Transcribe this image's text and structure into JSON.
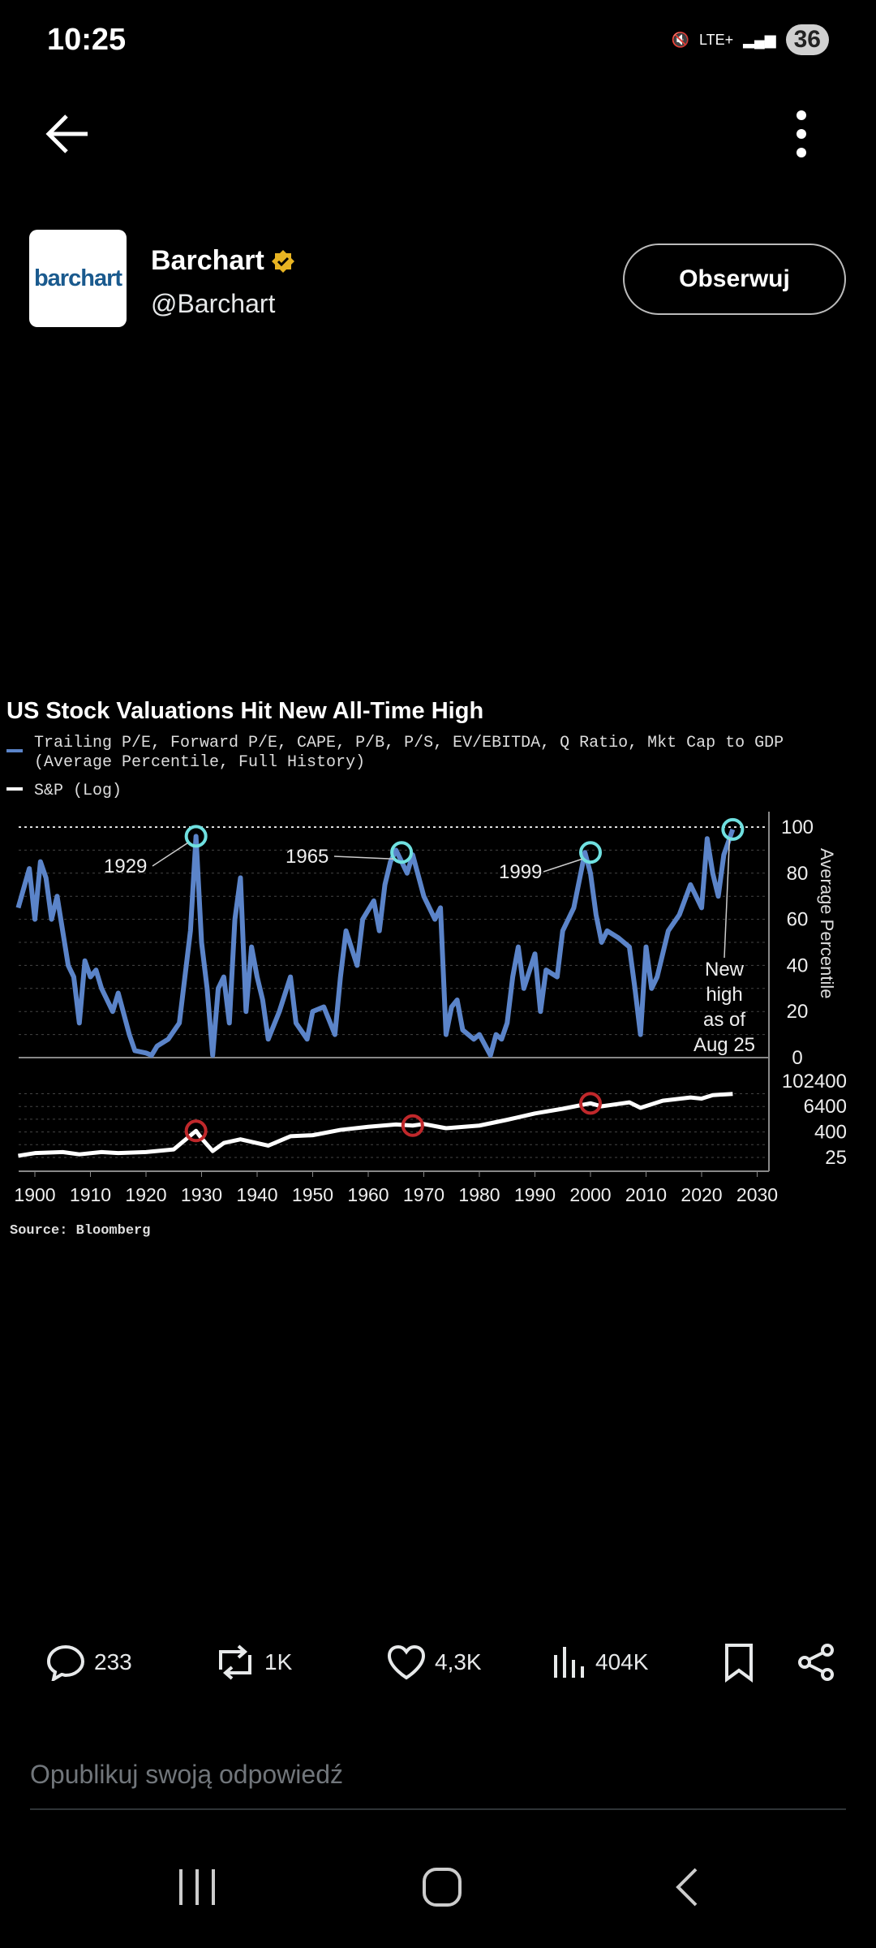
{
  "status_bar": {
    "time": "10:25",
    "network": "LTE+",
    "battery": "36"
  },
  "post": {
    "author_name": "Barchart",
    "handle": "@Barchart",
    "avatar_text": "barchart",
    "follow_label": "Obserwuj"
  },
  "actions": {
    "replies": "233",
    "reposts": "1K",
    "likes": "4,3K",
    "views": "404K"
  },
  "reply_placeholder": "Opublikuj swoją odpowiedź",
  "colors": {
    "valuation": "#5b84c9",
    "sp": "#ffffff",
    "peak_circle": "#6fe0e0",
    "sp_circle": "#c0282b",
    "verified": "#e8b422"
  },
  "chart_data": {
    "type": "line",
    "title": "US Stock Valuations Hit New All-Time High",
    "legend": [
      "Trailing P/E, Forward P/E, CAPE, P/B, P/S, EV/EBITDA, Q Ratio, Mkt Cap to GDP",
      "(Average Percentile, Full History)",
      "S&P (Log)"
    ],
    "source": "Source: Bloomberg",
    "xlabel": "",
    "xlim": [
      1896,
      2031
    ],
    "x_ticks": [
      "1900",
      "1910",
      "1920",
      "1930",
      "1940",
      "1950",
      "1960",
      "1970",
      "1980",
      "1990",
      "2000",
      "2010",
      "2020",
      "2030"
    ],
    "upper_panel": {
      "ylabel": "Average Percentile",
      "ylim": [
        0,
        100
      ],
      "y_ticks": [
        "0",
        "20",
        "40",
        "60",
        "80",
        "100"
      ],
      "series": {
        "name": "Average Percentile",
        "x": [
          1897,
          1899,
          1900,
          1901,
          1902,
          1903,
          1904,
          1906,
          1907,
          1908,
          1909,
          1910,
          1911,
          1912,
          1914,
          1915,
          1917,
          1918,
          1920,
          1921,
          1922,
          1924,
          1926,
          1928,
          1929,
          1930,
          1931,
          1932,
          1933,
          1934,
          1935,
          1936,
          1937,
          1938,
          1939,
          1940,
          1941,
          1942,
          1944,
          1946,
          1947,
          1949,
          1950,
          1952,
          1954,
          1955,
          1956,
          1958,
          1959,
          1961,
          1962,
          1963,
          1964,
          1965,
          1966,
          1967,
          1968,
          1970,
          1972,
          1973,
          1974,
          1975,
          1976,
          1977,
          1979,
          1980,
          1982,
          1983,
          1984,
          1985,
          1986,
          1987,
          1988,
          1990,
          1991,
          1992,
          1994,
          1995,
          1997,
          1999,
          2000,
          2001,
          2002,
          2003,
          2005,
          2007,
          2008,
          2009,
          2010,
          2011,
          2012,
          2014,
          2016,
          2018,
          2019,
          2020,
          2021,
          2022,
          2023,
          2024,
          2025.6
        ],
        "y": [
          65,
          82,
          60,
          85,
          78,
          60,
          70,
          40,
          35,
          15,
          42,
          35,
          38,
          30,
          20,
          28,
          10,
          3,
          2,
          1,
          5,
          8,
          15,
          55,
          96,
          50,
          30,
          1,
          30,
          35,
          15,
          60,
          78,
          20,
          48,
          35,
          25,
          8,
          20,
          35,
          15,
          8,
          20,
          22,
          10,
          35,
          55,
          40,
          60,
          68,
          55,
          75,
          85,
          90,
          85,
          80,
          88,
          70,
          60,
          65,
          10,
          22,
          25,
          12,
          8,
          10,
          1,
          10,
          8,
          15,
          35,
          48,
          30,
          45,
          20,
          38,
          35,
          55,
          65,
          89,
          80,
          62,
          50,
          55,
          52,
          48,
          30,
          10,
          48,
          30,
          35,
          55,
          62,
          75,
          70,
          65,
          95,
          80,
          70,
          88,
          99
        ]
      },
      "reference_line": 100,
      "annotations": [
        {
          "label": "1929",
          "x": 1929,
          "y": 96
        },
        {
          "label": "1965",
          "x": 1966,
          "y": 89
        },
        {
          "label": "1999",
          "x": 2000,
          "y": 89
        },
        {
          "label": "New high as of Aug 25",
          "lines": [
            "New",
            "high",
            "as of",
            "Aug 25"
          ],
          "x": 2025.6,
          "y": 99
        }
      ]
    },
    "lower_panel": {
      "ylabel": "S&P (Log)",
      "scale": "log",
      "y_ticks": [
        "25",
        "400",
        "6400",
        "102400"
      ],
      "series": {
        "name": "S&P (Log)",
        "x": [
          1897,
          1900,
          1905,
          1908,
          1912,
          1915,
          1920,
          1925,
          1929,
          1930,
          1932,
          1934,
          1937,
          1942,
          1946,
          1950,
          1955,
          1960,
          1965,
          1968,
          1970,
          1974,
          1980,
          1985,
          1990,
          1995,
          2000,
          2002,
          2007,
          2009,
          2013,
          2018,
          2020,
          2022,
          2025.6
        ],
        "y": [
          30,
          40,
          45,
          35,
          45,
          40,
          45,
          60,
          450,
          200,
          50,
          120,
          180,
          90,
          250,
          280,
          500,
          700,
          900,
          800,
          950,
          600,
          800,
          1500,
          3000,
          5000,
          9000,
          6500,
          10000,
          5500,
          12000,
          17000,
          15000,
          22000,
          25000
        ]
      },
      "circles": [
        1929,
        1968,
        2000
      ]
    }
  }
}
